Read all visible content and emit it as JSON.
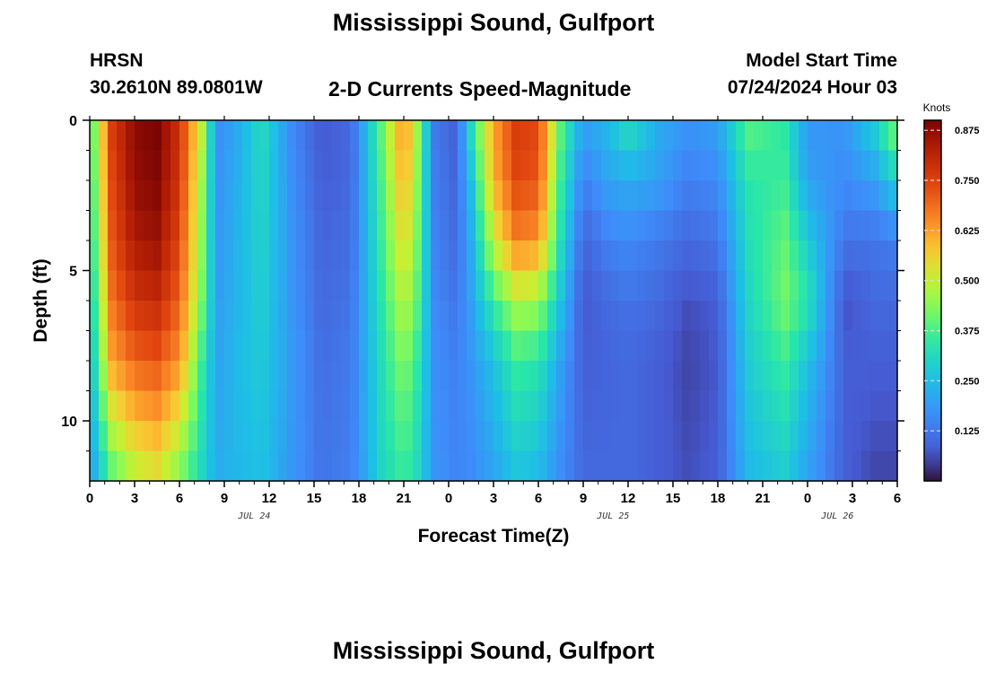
{
  "chart_data": {
    "type": "heatmap",
    "title": "Mississippi Sound, Gulfport",
    "subtitle": "2-D Currents Speed-Magnitude",
    "station": "HRSN",
    "coordinates": "30.2610N  89.0801W",
    "model_start_label": "Model Start Time",
    "model_start_value": "07/24/2024 Hour 03",
    "xlabel": "Forecast Time(Z)",
    "ylabel": "Depth (ft)",
    "colorbar_label": "Knots",
    "x_ticks": [
      "0",
      "3",
      "6",
      "9",
      "12",
      "15",
      "18",
      "21",
      "0",
      "3",
      "6",
      "9",
      "12",
      "15",
      "18",
      "21",
      "0",
      "3",
      "6"
    ],
    "date_labels": [
      {
        "text": "JUL 24",
        "hour": 11
      },
      {
        "text": "JUL 25",
        "hour": 35
      },
      {
        "text": "JUL 26",
        "hour": 50
      }
    ],
    "x_range_hours": [
      0,
      54
    ],
    "y_ticks": [
      0,
      5,
      10
    ],
    "ylim": [
      0,
      12
    ],
    "colorbar_ticks": [
      0.125,
      0.25,
      0.375,
      0.5,
      0.625,
      0.75,
      0.875
    ],
    "colorbar_range": [
      0.0,
      0.9
    ],
    "grid": false,
    "profiles": [
      {
        "hour": 0,
        "speeds": [
          0.35,
          0.33,
          0.3,
          0.27,
          0.24,
          0.18
        ]
      },
      {
        "hour": 1.5,
        "speeds": [
          0.76,
          0.74,
          0.72,
          0.68,
          0.62,
          0.38
        ]
      },
      {
        "hour": 3,
        "speeds": [
          0.88,
          0.87,
          0.84,
          0.78,
          0.7,
          0.48
        ]
      },
      {
        "hour": 4.5,
        "speeds": [
          0.9,
          0.89,
          0.86,
          0.8,
          0.72,
          0.52
        ]
      },
      {
        "hour": 6,
        "speeds": [
          0.78,
          0.77,
          0.74,
          0.7,
          0.64,
          0.42
        ]
      },
      {
        "hour": 7.5,
        "speeds": [
          0.5,
          0.46,
          0.44,
          0.42,
          0.36,
          0.3
        ]
      },
      {
        "hour": 8.5,
        "speeds": [
          0.16,
          0.17,
          0.18,
          0.19,
          0.2,
          0.22
        ]
      },
      {
        "hour": 10,
        "speeds": [
          0.22,
          0.23,
          0.24,
          0.24,
          0.25,
          0.24
        ]
      },
      {
        "hour": 11.5,
        "speeds": [
          0.32,
          0.31,
          0.3,
          0.29,
          0.28,
          0.26
        ]
      },
      {
        "hour": 13.5,
        "speeds": [
          0.16,
          0.17,
          0.18,
          0.18,
          0.19,
          0.18
        ]
      },
      {
        "hour": 15.5,
        "speeds": [
          0.07,
          0.08,
          0.09,
          0.1,
          0.11,
          0.12
        ]
      },
      {
        "hour": 17.5,
        "speeds": [
          0.1,
          0.1,
          0.11,
          0.12,
          0.13,
          0.14
        ]
      },
      {
        "hour": 19.5,
        "speeds": [
          0.4,
          0.38,
          0.36,
          0.34,
          0.32,
          0.3
        ]
      },
      {
        "hour": 21,
        "speeds": [
          0.66,
          0.62,
          0.56,
          0.5,
          0.44,
          0.36
        ]
      },
      {
        "hour": 22,
        "speeds": [
          0.44,
          0.42,
          0.4,
          0.38,
          0.34,
          0.3
        ]
      },
      {
        "hour": 23,
        "speeds": [
          0.13,
          0.14,
          0.15,
          0.16,
          0.17,
          0.18
        ]
      },
      {
        "hour": 24.5,
        "speeds": [
          0.08,
          0.09,
          0.1,
          0.12,
          0.14,
          0.15
        ]
      },
      {
        "hour": 25.5,
        "speeds": [
          0.32,
          0.26,
          0.22,
          0.2,
          0.18,
          0.16
        ]
      },
      {
        "hour": 27,
        "speeds": [
          0.62,
          0.6,
          0.5,
          0.36,
          0.26,
          0.2
        ]
      },
      {
        "hour": 28.5,
        "speeds": [
          0.76,
          0.74,
          0.66,
          0.48,
          0.36,
          0.26
        ]
      },
      {
        "hour": 30,
        "speeds": [
          0.74,
          0.72,
          0.64,
          0.46,
          0.34,
          0.24
        ]
      },
      {
        "hour": 31.5,
        "speeds": [
          0.4,
          0.36,
          0.32,
          0.26,
          0.2,
          0.16
        ]
      },
      {
        "hour": 33,
        "speeds": [
          0.2,
          0.14,
          0.09,
          0.07,
          0.08,
          0.1
        ]
      },
      {
        "hour": 34.5,
        "speeds": [
          0.24,
          0.2,
          0.14,
          0.1,
          0.09,
          0.1
        ]
      },
      {
        "hour": 36,
        "speeds": [
          0.34,
          0.22,
          0.16,
          0.12,
          0.1,
          0.1
        ]
      },
      {
        "hour": 38,
        "speeds": [
          0.22,
          0.2,
          0.13,
          0.1,
          0.08,
          0.08
        ]
      },
      {
        "hour": 40,
        "speeds": [
          0.18,
          0.14,
          0.1,
          0.06,
          0.05,
          0.06
        ]
      },
      {
        "hour": 42,
        "speeds": [
          0.2,
          0.16,
          0.12,
          0.08,
          0.07,
          0.08
        ]
      },
      {
        "hour": 44,
        "speeds": [
          0.4,
          0.34,
          0.32,
          0.3,
          0.28,
          0.24
        ]
      },
      {
        "hour": 46.5,
        "speeds": [
          0.34,
          0.36,
          0.4,
          0.42,
          0.36,
          0.28
        ]
      },
      {
        "hour": 48,
        "speeds": [
          0.18,
          0.2,
          0.28,
          0.34,
          0.26,
          0.2
        ]
      },
      {
        "hour": 50.5,
        "speeds": [
          0.18,
          0.16,
          0.12,
          0.06,
          0.08,
          0.08
        ]
      },
      {
        "hour": 52.5,
        "speeds": [
          0.3,
          0.2,
          0.12,
          0.1,
          0.08,
          0.05
        ]
      },
      {
        "hour": 54,
        "speeds": [
          0.45,
          0.3,
          0.14,
          0.1,
          0.08,
          0.05
        ]
      }
    ],
    "profile_depths_ft": [
      0,
      2,
      4,
      6,
      8,
      12
    ]
  }
}
